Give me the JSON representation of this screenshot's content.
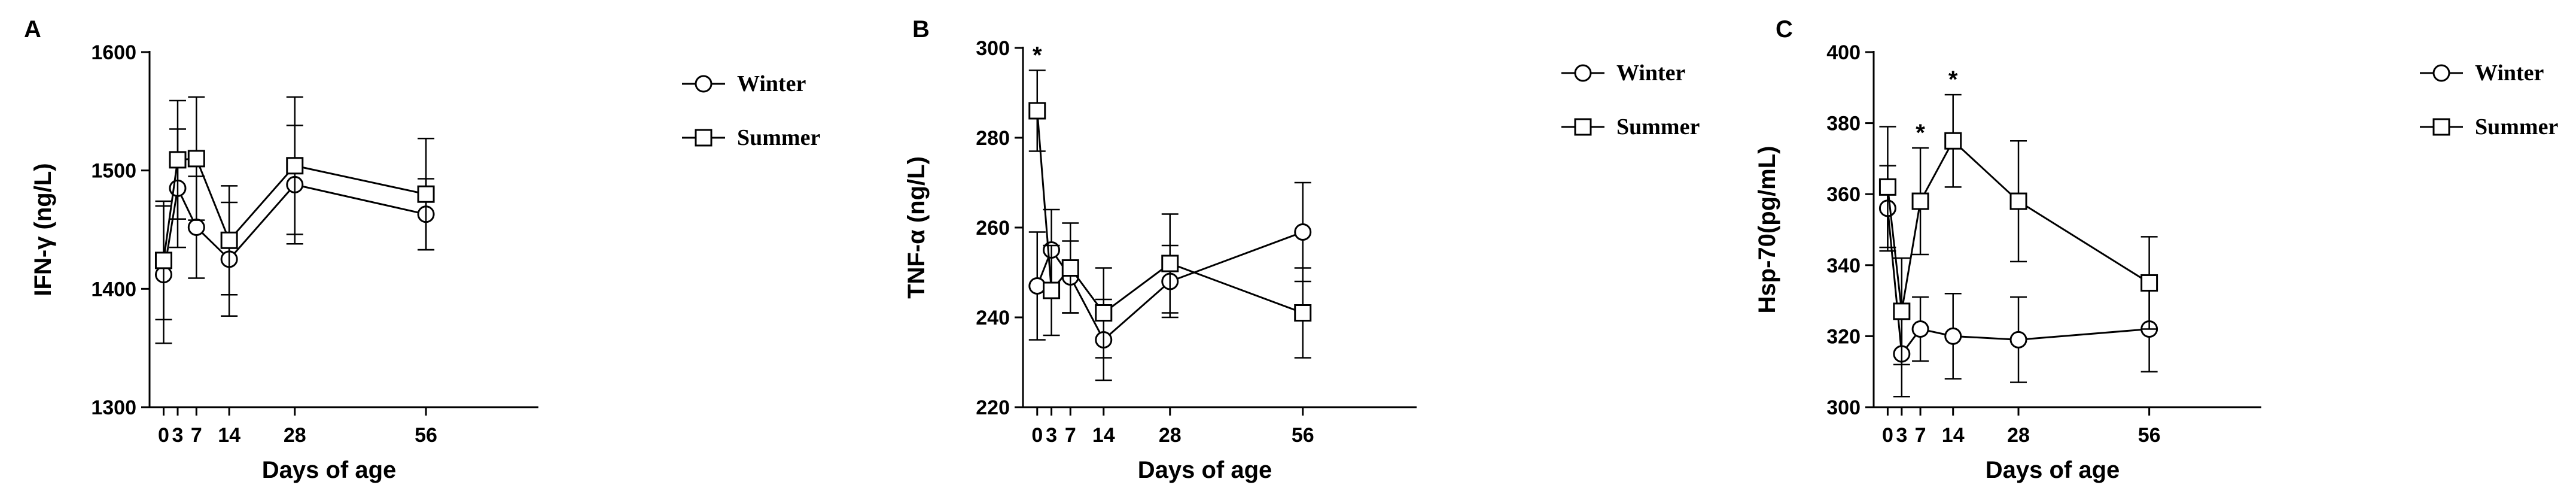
{
  "chart_data": [
    {
      "type": "line",
      "panel": "A",
      "title": "",
      "xlabel": "Days of age",
      "ylabel": "IFN-γ (ng/L)",
      "x": [
        0,
        3,
        7,
        14,
        28,
        56
      ],
      "x_ticks": [
        "0",
        "3",
        "7",
        "14",
        "28",
        "56"
      ],
      "xlim": [
        -3,
        80
      ],
      "ylim": [
        1300,
        1600
      ],
      "y_ticks": [
        1300,
        1400,
        1500,
        1600
      ],
      "y_tick_labels": [
        "1300",
        "1400",
        "1500",
        "1600"
      ],
      "legend_placement": "right",
      "significance": [],
      "series": [
        {
          "name": "Winter",
          "marker": "circle",
          "values": [
            1412,
            1485,
            1452,
            1425,
            1488,
            1463
          ],
          "errors": [
            58,
            50,
            43,
            48,
            50,
            30
          ]
        },
        {
          "name": "Summer",
          "marker": "square",
          "values": [
            1424,
            1509,
            1510,
            1441,
            1504,
            1480
          ],
          "errors": [
            50,
            50,
            52,
            46,
            58,
            47
          ]
        }
      ]
    },
    {
      "type": "line",
      "panel": "B",
      "title": "",
      "xlabel": "Days of age",
      "ylabel": "TNF-α (ng/L)",
      "x": [
        0,
        3,
        7,
        14,
        28,
        56
      ],
      "x_ticks": [
        "0",
        "3",
        "7",
        "14",
        "28",
        "56"
      ],
      "xlim": [
        -3,
        80
      ],
      "ylim": [
        220,
        300
      ],
      "y_ticks": [
        220,
        240,
        260,
        280,
        300
      ],
      "y_tick_labels": [
        "220",
        "240",
        "260",
        "280",
        "300"
      ],
      "legend_placement": "right",
      "significance": [
        {
          "x": 0,
          "label": "*"
        }
      ],
      "series": [
        {
          "name": "Winter",
          "marker": "circle",
          "values": [
            247,
            255,
            249,
            235,
            248,
            259
          ],
          "errors": [
            12,
            9,
            8,
            9,
            8,
            11
          ]
        },
        {
          "name": "Summer",
          "marker": "square",
          "values": [
            286,
            246,
            251,
            241,
            252,
            241
          ],
          "errors": [
            9,
            10,
            10,
            10,
            11,
            10
          ]
        }
      ]
    },
    {
      "type": "line",
      "panel": "C",
      "title": "",
      "xlabel": "Days of age",
      "ylabel": "Hsp-70(pg/mL)",
      "x": [
        0,
        3,
        7,
        14,
        28,
        56
      ],
      "x_ticks": [
        "0",
        "3",
        "7",
        "14",
        "28",
        "56"
      ],
      "xlim": [
        -3,
        80
      ],
      "ylim": [
        300,
        400
      ],
      "y_ticks": [
        300,
        320,
        340,
        360,
        380,
        400
      ],
      "y_tick_labels": [
        "300",
        "320",
        "340",
        "360",
        "380",
        "400"
      ],
      "legend_placement": "right",
      "significance": [
        {
          "x": 7,
          "label": "*"
        },
        {
          "x": 14,
          "label": "*"
        }
      ],
      "series": [
        {
          "name": "Winter",
          "marker": "circle",
          "values": [
            356,
            315,
            322,
            320,
            319,
            322
          ],
          "errors": [
            12,
            12,
            9,
            12,
            12,
            12
          ]
        },
        {
          "name": "Summer",
          "marker": "square",
          "values": [
            362,
            327,
            358,
            375,
            358,
            335
          ],
          "errors": [
            17,
            15,
            15,
            13,
            17,
            13
          ]
        }
      ]
    }
  ]
}
